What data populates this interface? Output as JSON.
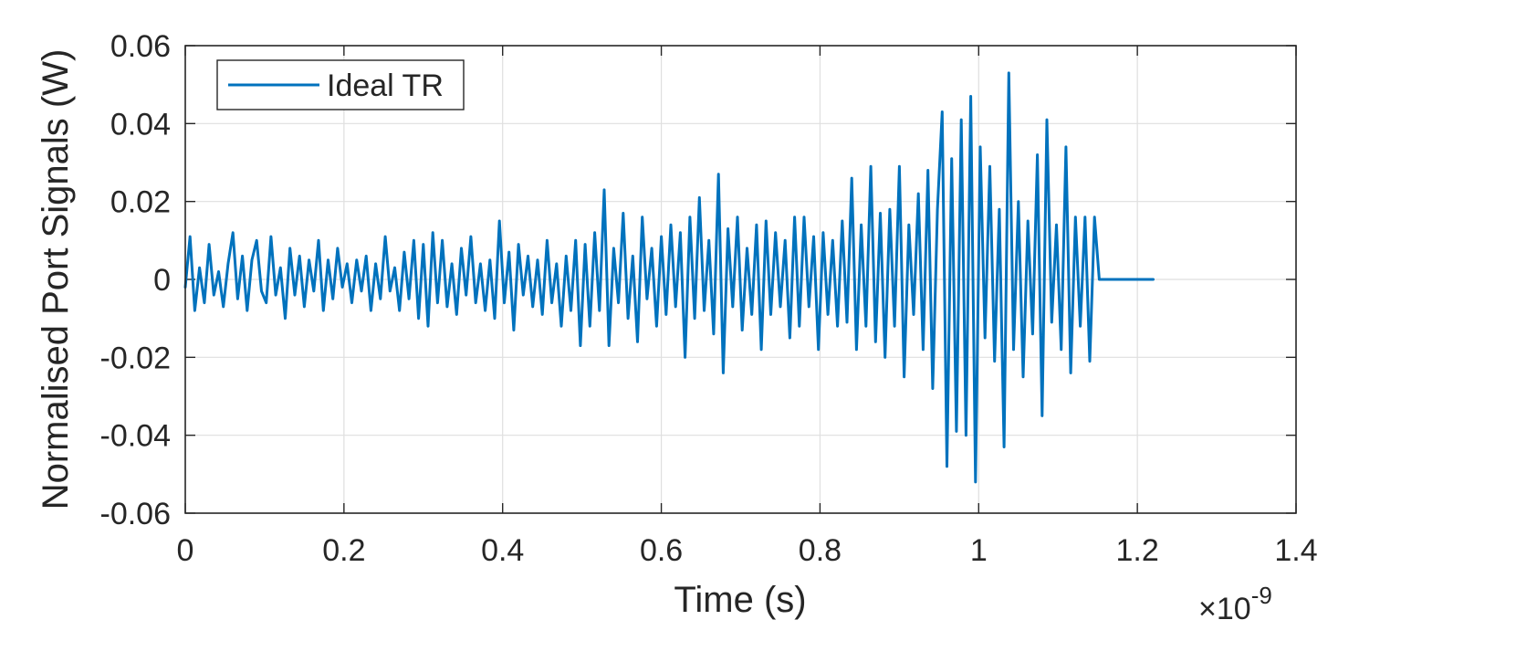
{
  "chart_data": {
    "type": "line",
    "title": "",
    "xlabel": "Time (s)",
    "ylabel": "Normalised Port Signals (W)",
    "x_exponent_label": "×10",
    "x_exponent_power": "-9",
    "xlim": [
      0,
      1.4
    ],
    "ylim": [
      -0.06,
      0.06
    ],
    "x_ticks": [
      0,
      0.2,
      0.4,
      0.6,
      0.8,
      1.0,
      1.2,
      1.4
    ],
    "x_tick_labels": [
      "0",
      "0.2",
      "0.4",
      "0.6",
      "0.8",
      "1",
      "1.2",
      "1.4"
    ],
    "y_ticks": [
      -0.06,
      -0.04,
      -0.02,
      0,
      0.02,
      0.04,
      0.06
    ],
    "y_tick_labels": [
      "-0.06",
      "-0.04",
      "-0.02",
      "0",
      "0.02",
      "0.04",
      "0.06"
    ],
    "grid": true,
    "legend_position": "top-left",
    "series": [
      {
        "name": "Ideal TR",
        "color": "#0072BD",
        "points": [
          [
            0.0,
            -0.002
          ],
          [
            0.006,
            0.011
          ],
          [
            0.012,
            -0.008
          ],
          [
            0.018,
            0.003
          ],
          [
            0.024,
            -0.006
          ],
          [
            0.03,
            0.009
          ],
          [
            0.036,
            -0.004
          ],
          [
            0.042,
            0.002
          ],
          [
            0.048,
            -0.007
          ],
          [
            0.054,
            0.004
          ],
          [
            0.06,
            0.012
          ],
          [
            0.066,
            -0.005
          ],
          [
            0.072,
            0.006
          ],
          [
            0.078,
            -0.008
          ],
          [
            0.084,
            0.005
          ],
          [
            0.09,
            0.01
          ],
          [
            0.096,
            -0.003
          ],
          [
            0.102,
            -0.006
          ],
          [
            0.108,
            0.011
          ],
          [
            0.114,
            -0.004
          ],
          [
            0.12,
            0.003
          ],
          [
            0.126,
            -0.01
          ],
          [
            0.132,
            0.008
          ],
          [
            0.138,
            -0.004
          ],
          [
            0.144,
            0.006
          ],
          [
            0.15,
            -0.007
          ],
          [
            0.156,
            0.005
          ],
          [
            0.162,
            -0.003
          ],
          [
            0.168,
            0.01
          ],
          [
            0.174,
            -0.008
          ],
          [
            0.18,
            0.005
          ],
          [
            0.186,
            -0.005
          ],
          [
            0.192,
            0.008
          ],
          [
            0.198,
            -0.002
          ],
          [
            0.204,
            0.004
          ],
          [
            0.21,
            -0.006
          ],
          [
            0.216,
            0.005
          ],
          [
            0.222,
            -0.003
          ],
          [
            0.228,
            0.006
          ],
          [
            0.234,
            -0.008
          ],
          [
            0.24,
            0.004
          ],
          [
            0.246,
            -0.005
          ],
          [
            0.252,
            0.011
          ],
          [
            0.258,
            -0.003
          ],
          [
            0.264,
            0.003
          ],
          [
            0.27,
            -0.008
          ],
          [
            0.276,
            0.007
          ],
          [
            0.282,
            -0.005
          ],
          [
            0.288,
            0.01
          ],
          [
            0.294,
            -0.01
          ],
          [
            0.3,
            0.009
          ],
          [
            0.306,
            -0.012
          ],
          [
            0.312,
            0.012
          ],
          [
            0.318,
            -0.006
          ],
          [
            0.324,
            0.01
          ],
          [
            0.33,
            -0.007
          ],
          [
            0.336,
            0.004
          ],
          [
            0.342,
            -0.009
          ],
          [
            0.348,
            0.008
          ],
          [
            0.354,
            -0.004
          ],
          [
            0.36,
            0.011
          ],
          [
            0.366,
            -0.006
          ],
          [
            0.372,
            0.004
          ],
          [
            0.378,
            -0.008
          ],
          [
            0.384,
            0.005
          ],
          [
            0.39,
            -0.01
          ],
          [
            0.396,
            0.015
          ],
          [
            0.402,
            -0.006
          ],
          [
            0.408,
            0.007
          ],
          [
            0.414,
            -0.013
          ],
          [
            0.42,
            0.009
          ],
          [
            0.426,
            -0.004
          ],
          [
            0.432,
            0.006
          ],
          [
            0.438,
            -0.007
          ],
          [
            0.444,
            0.005
          ],
          [
            0.45,
            -0.009
          ],
          [
            0.456,
            0.01
          ],
          [
            0.462,
            -0.006
          ],
          [
            0.468,
            0.004
          ],
          [
            0.474,
            -0.012
          ],
          [
            0.48,
            0.006
          ],
          [
            0.486,
            -0.008
          ],
          [
            0.492,
            0.01
          ],
          [
            0.498,
            -0.017
          ],
          [
            0.504,
            0.009
          ],
          [
            0.51,
            -0.012
          ],
          [
            0.516,
            0.012
          ],
          [
            0.522,
            -0.008
          ],
          [
            0.528,
            0.023
          ],
          [
            0.534,
            -0.017
          ],
          [
            0.54,
            0.008
          ],
          [
            0.546,
            -0.006
          ],
          [
            0.552,
            0.017
          ],
          [
            0.558,
            -0.01
          ],
          [
            0.564,
            0.006
          ],
          [
            0.57,
            -0.016
          ],
          [
            0.576,
            0.016
          ],
          [
            0.582,
            -0.005
          ],
          [
            0.588,
            0.008
          ],
          [
            0.594,
            -0.012
          ],
          [
            0.6,
            0.011
          ],
          [
            0.606,
            -0.009
          ],
          [
            0.612,
            0.014
          ],
          [
            0.618,
            -0.007
          ],
          [
            0.624,
            0.012
          ],
          [
            0.63,
            -0.02
          ],
          [
            0.636,
            0.016
          ],
          [
            0.642,
            -0.01
          ],
          [
            0.648,
            0.021
          ],
          [
            0.654,
            -0.008
          ],
          [
            0.66,
            0.01
          ],
          [
            0.666,
            -0.014
          ],
          [
            0.672,
            0.027
          ],
          [
            0.678,
            -0.024
          ],
          [
            0.684,
            0.013
          ],
          [
            0.69,
            -0.007
          ],
          [
            0.696,
            0.016
          ],
          [
            0.702,
            -0.013
          ],
          [
            0.708,
            0.008
          ],
          [
            0.714,
            -0.009
          ],
          [
            0.72,
            0.014
          ],
          [
            0.726,
            -0.018
          ],
          [
            0.732,
            0.015
          ],
          [
            0.738,
            -0.009
          ],
          [
            0.744,
            0.012
          ],
          [
            0.75,
            -0.007
          ],
          [
            0.756,
            0.01
          ],
          [
            0.762,
            -0.015
          ],
          [
            0.768,
            0.016
          ],
          [
            0.774,
            -0.012
          ],
          [
            0.78,
            0.016
          ],
          [
            0.786,
            -0.007
          ],
          [
            0.792,
            0.011
          ],
          [
            0.798,
            -0.018
          ],
          [
            0.804,
            0.012
          ],
          [
            0.81,
            -0.009
          ],
          [
            0.816,
            0.01
          ],
          [
            0.822,
            -0.012
          ],
          [
            0.828,
            0.015
          ],
          [
            0.834,
            -0.011
          ],
          [
            0.84,
            0.026
          ],
          [
            0.846,
            -0.018
          ],
          [
            0.852,
            0.014
          ],
          [
            0.858,
            -0.012
          ],
          [
            0.864,
            0.029
          ],
          [
            0.87,
            -0.016
          ],
          [
            0.876,
            0.017
          ],
          [
            0.882,
            -0.02
          ],
          [
            0.888,
            0.018
          ],
          [
            0.894,
            -0.012
          ],
          [
            0.9,
            0.029
          ],
          [
            0.906,
            -0.025
          ],
          [
            0.912,
            0.014
          ],
          [
            0.918,
            -0.009
          ],
          [
            0.924,
            0.022
          ],
          [
            0.93,
            -0.018
          ],
          [
            0.936,
            0.028
          ],
          [
            0.942,
            -0.028
          ],
          [
            0.948,
            0.018
          ],
          [
            0.954,
            0.043
          ],
          [
            0.96,
            -0.048
          ],
          [
            0.966,
            0.031
          ],
          [
            0.972,
            -0.039
          ],
          [
            0.978,
            0.041
          ],
          [
            0.984,
            -0.04
          ],
          [
            0.99,
            0.047
          ],
          [
            0.996,
            -0.052
          ],
          [
            1.002,
            0.034
          ],
          [
            1.008,
            -0.015
          ],
          [
            1.014,
            0.029
          ],
          [
            1.02,
            -0.021
          ],
          [
            1.026,
            0.018
          ],
          [
            1.032,
            -0.043
          ],
          [
            1.038,
            0.053
          ],
          [
            1.044,
            -0.018
          ],
          [
            1.05,
            0.02
          ],
          [
            1.056,
            -0.025
          ],
          [
            1.062,
            0.015
          ],
          [
            1.068,
            -0.014
          ],
          [
            1.074,
            0.032
          ],
          [
            1.08,
            -0.035
          ],
          [
            1.086,
            0.041
          ],
          [
            1.092,
            -0.011
          ],
          [
            1.098,
            0.014
          ],
          [
            1.104,
            -0.018
          ],
          [
            1.11,
            0.034
          ],
          [
            1.116,
            -0.024
          ],
          [
            1.122,
            0.016
          ],
          [
            1.128,
            -0.012
          ],
          [
            1.134,
            0.016
          ],
          [
            1.14,
            -0.021
          ],
          [
            1.146,
            0.016
          ],
          [
            1.152,
            0.0
          ],
          [
            1.158,
            0.0
          ],
          [
            1.17,
            0.0
          ],
          [
            1.185,
            0.0
          ],
          [
            1.2,
            0.0
          ],
          [
            1.22,
            0.0
          ]
        ]
      }
    ]
  }
}
